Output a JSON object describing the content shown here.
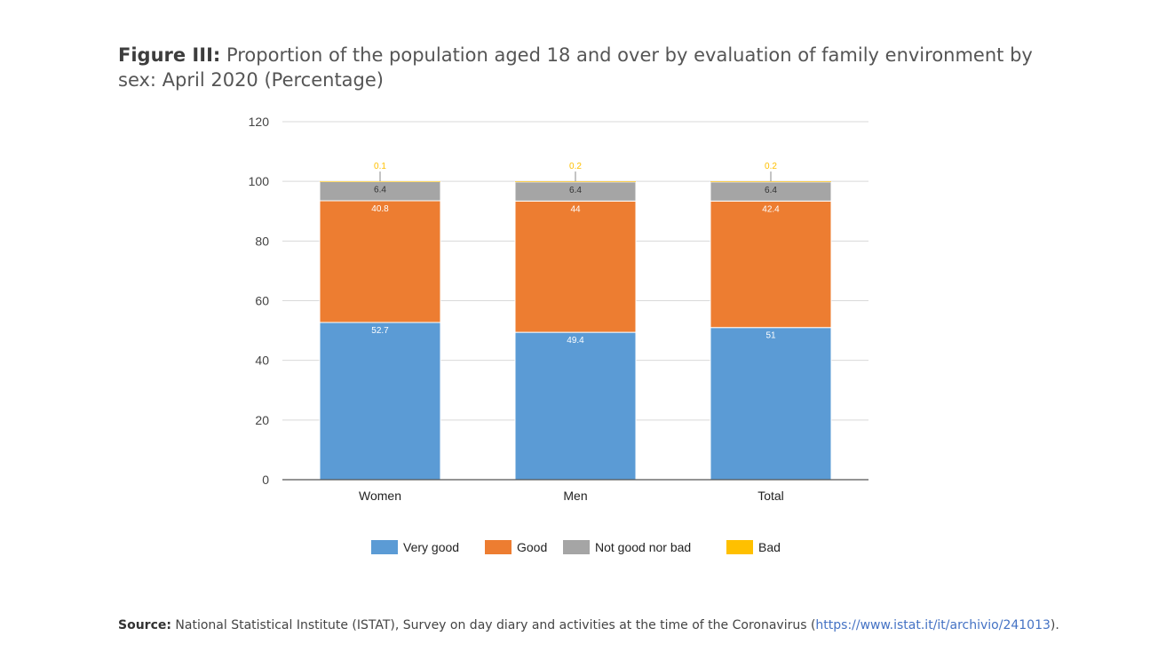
{
  "title": {
    "label": "Figure III:",
    "text": "Proportion of the population aged 18 and over by evaluation of family environment by sex: April 2020 (Percentage)"
  },
  "chart_data": {
    "type": "bar",
    "stacked": true,
    "categories": [
      "Women",
      "Men",
      "Total"
    ],
    "series": [
      {
        "name": "Very good",
        "values": [
          52.7,
          49.4,
          51
        ],
        "color": "#5b9bd5",
        "label_color": "#ffffff"
      },
      {
        "name": "Good",
        "values": [
          40.8,
          44,
          42.4
        ],
        "color": "#ed7d31",
        "label_color": "#ffffff"
      },
      {
        "name": "Not good nor bad",
        "values": [
          6.4,
          6.4,
          6.4
        ],
        "color": "#a5a5a5",
        "label_color": "#333333"
      },
      {
        "name": "Bad",
        "values": [
          0.1,
          0.2,
          0.2
        ],
        "color": "#ffc000",
        "label_color": "#ffc000"
      }
    ],
    "ylim": [
      0,
      120
    ],
    "yticks": [
      0,
      20,
      40,
      60,
      80,
      100,
      120
    ],
    "grid": true,
    "legend": "bottom",
    "xlabel": "",
    "ylabel": ""
  },
  "source": {
    "label": "Source:",
    "text_before": "National Statistical Institute (ISTAT), Survey on day diary and activities at the time of the Coronavirus (",
    "link": "https://www.istat.it/it/archivio/241013",
    "text_after": ")."
  }
}
